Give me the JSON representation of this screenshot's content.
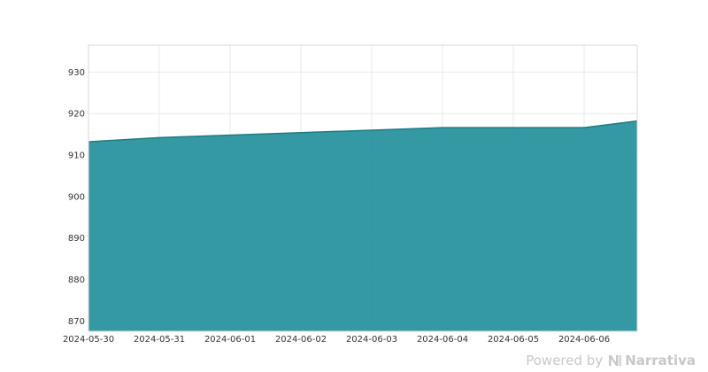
{
  "chart_data": {
    "type": "area",
    "title": "",
    "xlabel": "",
    "ylabel": "",
    "x": [
      "2024-05-30",
      "2024-05-31",
      "2024-06-01",
      "2024-06-02",
      "2024-06-03",
      "2024-06-04",
      "2024-06-05",
      "2024-06-06",
      "2024-06-06 18:00"
    ],
    "y": [
      913.2,
      914.2,
      914.8,
      915.4,
      916.0,
      916.6,
      916.6,
      916.6,
      918.2
    ],
    "x_tick_labels": [
      "2024-05-30",
      "2024-05-31",
      "2024-06-01",
      "2024-06-02",
      "2024-06-03",
      "2024-06-04",
      "2024-06-05",
      "2024-06-06"
    ],
    "y_ticks": [
      870,
      880,
      890,
      900,
      910,
      920,
      930
    ],
    "ylim": [
      867.5,
      936.5
    ],
    "xlim": [
      "2024-05-30",
      "2024-06-06 18:00"
    ],
    "grid": true,
    "legend": "none",
    "fill_color": "#2a939f",
    "line_color": "#1f7a84"
  },
  "credit": {
    "powered_by": "Powered by",
    "brand": "Narrativa"
  }
}
